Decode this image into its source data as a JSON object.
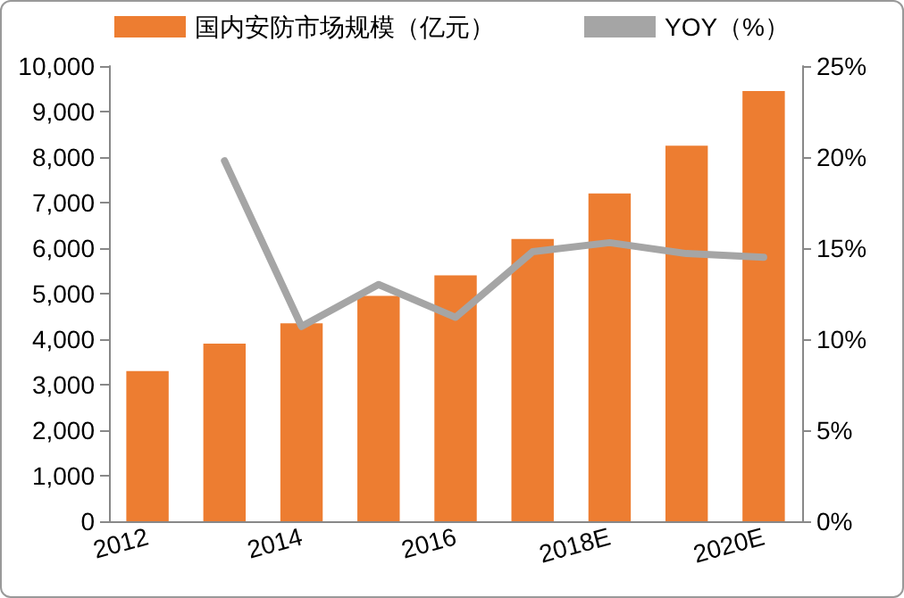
{
  "chart_data": {
    "type": "bar",
    "categories": [
      "2012",
      null,
      "2014",
      null,
      "2016",
      null,
      "2018E",
      null,
      "2020E"
    ],
    "series": [
      {
        "name": "国内安防市场规模（亿元）",
        "color": "#ed7d31",
        "values": [
          3300,
          3900,
          4350,
          4950,
          5400,
          6200,
          7200,
          8250,
          9450
        ]
      },
      {
        "name": "YOY（%）",
        "type": "line",
        "axis": "y2",
        "color": "#a5a5a5",
        "values": [
          null,
          19.8,
          10.7,
          13.0,
          11.2,
          14.8,
          15.3,
          14.7,
          14.5
        ]
      }
    ],
    "ylim": [
      0,
      10000
    ],
    "yticks": [
      {
        "value": 0,
        "label": "0"
      },
      {
        "value": 1000,
        "label": "1,000"
      },
      {
        "value": 2000,
        "label": "2,000"
      },
      {
        "value": 3000,
        "label": "3,000"
      },
      {
        "value": 4000,
        "label": "4,000"
      },
      {
        "value": 5000,
        "label": "5,000"
      },
      {
        "value": 6000,
        "label": "6,000"
      },
      {
        "value": 7000,
        "label": "7,000"
      },
      {
        "value": 8000,
        "label": "8,000"
      },
      {
        "value": 9000,
        "label": "9,000"
      },
      {
        "value": 10000,
        "label": "10,000"
      }
    ],
    "y2lim": [
      0,
      25
    ],
    "y2ticks": [
      {
        "value": 0,
        "label": "0%"
      },
      {
        "value": 5,
        "label": "5%"
      },
      {
        "value": 10,
        "label": "10%"
      },
      {
        "value": 15,
        "label": "15%"
      },
      {
        "value": 20,
        "label": "20%"
      },
      {
        "value": 25,
        "label": "25%"
      }
    ],
    "legend": "top",
    "grid": false,
    "marker": "none",
    "line_style": "solid"
  }
}
